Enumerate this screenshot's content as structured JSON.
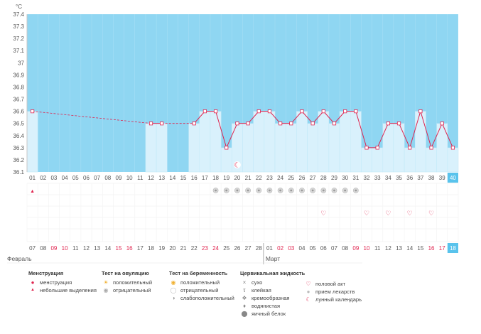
{
  "chart_data": {
    "type": "line",
    "ylabel": "°C",
    "ylim": [
      36.1,
      37.4
    ],
    "yticks": [
      "36.1",
      "36.2",
      "36.3",
      "36.4",
      "36.5",
      "36.6",
      "36.7",
      "36.8",
      "36.9",
      "37",
      "37.1",
      "37.2",
      "37.3",
      "37.4"
    ],
    "cycle_days": [
      "01",
      "02",
      "03",
      "04",
      "05",
      "06",
      "07",
      "08",
      "09",
      "10",
      "11",
      "12",
      "13",
      "14",
      "15",
      "16",
      "17",
      "18",
      "19",
      "20",
      "21",
      "22",
      "23",
      "24",
      "25",
      "26",
      "27",
      "28",
      "29",
      "30",
      "31",
      "32",
      "33",
      "34",
      "35",
      "36",
      "37",
      "38",
      "39",
      "40"
    ],
    "dates": [
      "07",
      "08",
      "09",
      "10",
      "11",
      "12",
      "13",
      "14",
      "15",
      "16",
      "17",
      "18",
      "19",
      "20",
      "21",
      "22",
      "23",
      "24",
      "25",
      "26",
      "27",
      "28",
      "01",
      "02",
      "03",
      "04",
      "05",
      "06",
      "07",
      "08",
      "09",
      "10",
      "11",
      "12",
      "13",
      "14",
      "15",
      "16",
      "17",
      "18"
    ],
    "red_dates": [
      2,
      3,
      8,
      9,
      16,
      17,
      23,
      24,
      30,
      31,
      37,
      38
    ],
    "months": [
      "Февраль",
      "Март"
    ],
    "temperatures": [
      36.6,
      null,
      null,
      null,
      null,
      null,
      null,
      null,
      null,
      null,
      null,
      36.5,
      36.5,
      null,
      null,
      36.5,
      36.6,
      36.6,
      36.3,
      36.5,
      36.5,
      36.6,
      36.6,
      36.5,
      36.5,
      36.6,
      36.5,
      36.6,
      36.5,
      36.6,
      36.6,
      36.3,
      36.3,
      36.5,
      36.5,
      36.3,
      36.6,
      36.3,
      36.5,
      36.3
    ],
    "current_day_index": 39,
    "markers": {
      "menstruation_days": [
        0
      ],
      "ovulation_negative_days": [
        17,
        18,
        19,
        20,
        21,
        22,
        23,
        24,
        25,
        26,
        27,
        28,
        29,
        30
      ],
      "intercourse_days": [
        27,
        31,
        33,
        35,
        37
      ],
      "lunar_day": 19
    }
  },
  "legend": {
    "menstruation": {
      "title": "Менструация",
      "items": [
        "менструация",
        "небольшие выделения"
      ]
    },
    "ovulation": {
      "title": "Тест на овуляцию",
      "items": [
        "положительный",
        "отрицательный"
      ]
    },
    "pregnancy": {
      "title": "Тест на беременность",
      "items": [
        "положительный",
        "отрицательный",
        "слабоположительный"
      ]
    },
    "cervical": {
      "title": "Цервикальная жидкость",
      "items": [
        "сухо",
        "клейкая",
        "кремообразная",
        "водянистая",
        "яичный белок"
      ]
    },
    "other": {
      "items": [
        "половой акт",
        "прием лекарств",
        "лунный календарь"
      ]
    }
  },
  "colors": {
    "sky": "#8fd6f2",
    "bar": "#d9f1fc",
    "bar_border": "#b5e4f7",
    "line": "#e0234e",
    "current": "#59c3ec"
  }
}
